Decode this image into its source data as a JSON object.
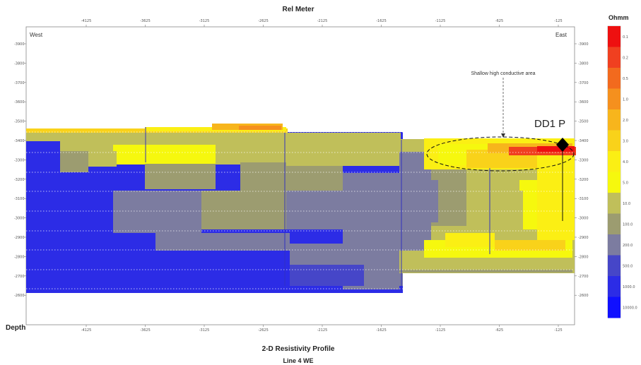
{
  "chart_data": {
    "type": "heatmap",
    "title": "2-D Resistivity Profile",
    "subtitle": "Line 4 WE",
    "xlabel": "Rel Meter",
    "ylabel": "Depth",
    "x_ticks": [
      "-4125",
      "-3625",
      "-3125",
      "-2625",
      "-2125",
      "-1625",
      "-1125",
      "-625",
      "-125"
    ],
    "y_ticks": [
      "-3900",
      "-3800",
      "-3700",
      "-3600",
      "-3500",
      "-3400",
      "-3300",
      "-3200",
      "-3100",
      "-3000",
      "-2900",
      "-2800",
      "-2700",
      "-2600"
    ],
    "legend_title": "Ohmm",
    "legend_labels": [
      "0.1",
      "0.2",
      "0.5",
      "1.0",
      "2.0",
      "3.0",
      "4.0",
      "5.0",
      "10.0",
      "100.0",
      "200.0",
      "500.0",
      "1000.0",
      "10000.0"
    ],
    "colorscale": [
      "#ee1010",
      "#f04020",
      "#f26a1e",
      "#f5901e",
      "#f7b51c",
      "#f9d21a",
      "#fbef14",
      "#f6f80e",
      "#c0bf5a",
      "#9c9c70",
      "#7c7ca0",
      "#4646c8",
      "#2c2ce6",
      "#1010ff"
    ],
    "annotations": {
      "west": "West",
      "east": "East",
      "shallow_area": "Shallow high conductive area",
      "well": "DD1 P"
    }
  }
}
